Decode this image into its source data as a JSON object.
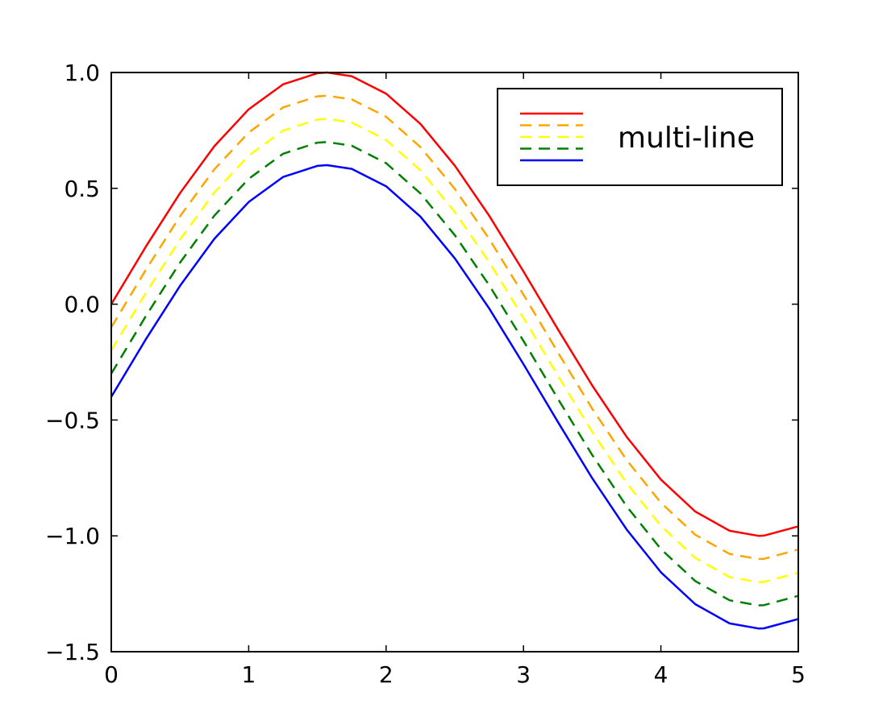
{
  "chart_data": {
    "type": "line",
    "title": "",
    "xlabel": "",
    "ylabel": "",
    "xlim": [
      0,
      5
    ],
    "ylim": [
      -1.5,
      1.0
    ],
    "grid": false,
    "legend": {
      "label": "multi-line",
      "placement": "top-right"
    },
    "x_ticks": [
      0,
      1,
      2,
      3,
      4,
      5
    ],
    "x_tick_labels": [
      "0",
      "1",
      "2",
      "3",
      "4",
      "5"
    ],
    "y_ticks": [
      -1.5,
      -1.0,
      -0.5,
      0.0,
      0.5,
      1.0
    ],
    "y_tick_labels": [
      "−1.5",
      "−1.0",
      "−0.5",
      "0.0",
      "0.5",
      "1.0"
    ],
    "x": [
      0.0,
      0.25,
      0.5,
      0.75,
      1.0,
      1.25,
      1.5,
      1.57,
      1.75,
      2.0,
      2.25,
      2.5,
      2.75,
      3.0,
      3.25,
      3.5,
      3.75,
      4.0,
      4.25,
      4.5,
      4.71,
      4.75,
      5.0
    ],
    "series": [
      {
        "color": "#ff0000",
        "dash": "solid",
        "values": [
          0.0,
          0.247,
          0.479,
          0.682,
          0.841,
          0.949,
          0.997,
          1.0,
          0.984,
          0.909,
          0.778,
          0.598,
          0.382,
          0.141,
          -0.108,
          -0.351,
          -0.572,
          -0.757,
          -0.895,
          -0.978,
          -1.0,
          -0.999,
          -0.959
        ]
      },
      {
        "color": "#ffa500",
        "dash": "dashed",
        "values": [
          -0.1,
          0.147,
          0.379,
          0.582,
          0.741,
          0.849,
          0.897,
          0.9,
          0.884,
          0.809,
          0.678,
          0.498,
          0.282,
          0.041,
          -0.208,
          -0.451,
          -0.672,
          -0.857,
          -0.995,
          -1.078,
          -1.1,
          -1.099,
          -1.059
        ]
      },
      {
        "color": "#ffff00",
        "dash": "dashed",
        "values": [
          -0.2,
          0.047,
          0.279,
          0.482,
          0.641,
          0.749,
          0.797,
          0.8,
          0.784,
          0.709,
          0.578,
          0.398,
          0.182,
          -0.059,
          -0.308,
          -0.551,
          -0.772,
          -0.957,
          -1.095,
          -1.178,
          -1.2,
          -1.199,
          -1.159
        ]
      },
      {
        "color": "#008000",
        "dash": "dashed",
        "values": [
          -0.3,
          -0.053,
          0.179,
          0.382,
          0.541,
          0.649,
          0.697,
          0.7,
          0.684,
          0.609,
          0.478,
          0.298,
          0.082,
          -0.159,
          -0.408,
          -0.651,
          -0.872,
          -1.057,
          -1.195,
          -1.278,
          -1.3,
          -1.299,
          -1.259
        ]
      },
      {
        "color": "#0000ff",
        "dash": "solid",
        "values": [
          -0.4,
          -0.153,
          0.079,
          0.282,
          0.441,
          0.549,
          0.597,
          0.6,
          0.584,
          0.509,
          0.378,
          0.198,
          -0.018,
          -0.259,
          -0.508,
          -0.751,
          -0.972,
          -1.157,
          -1.295,
          -1.378,
          -1.4,
          -1.399,
          -1.359
        ]
      }
    ]
  }
}
